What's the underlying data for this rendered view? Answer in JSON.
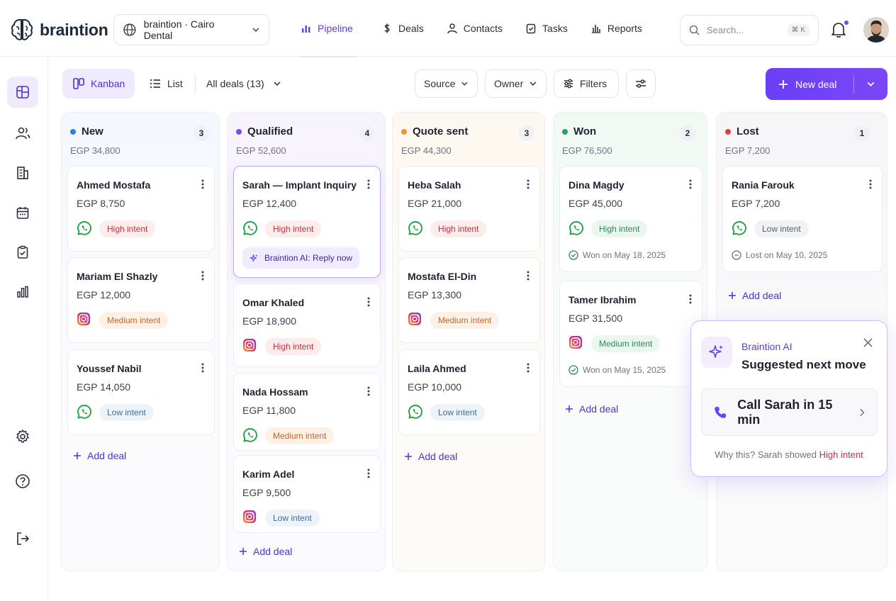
{
  "app": {
    "brand": "braintion",
    "workspace": "braintion · Cairo Dental"
  },
  "nav": [
    {
      "label": "Pipeline",
      "icon": "bar-chart-icon",
      "active": true
    },
    {
      "label": "Deals",
      "icon": "dollar-icon"
    },
    {
      "label": "Contacts",
      "icon": "user-icon"
    },
    {
      "label": "Tasks",
      "icon": "clipboard-check-icon"
    },
    {
      "label": "Reports",
      "icon": "reports-icon"
    }
  ],
  "search": {
    "placeholder": "Search...",
    "shortcut": "⌘ K"
  },
  "toolbar": {
    "kanban": "Kanban",
    "list": "List",
    "all_deals": "All deals (13)",
    "source": "Source",
    "owner": "Owner",
    "filters": "Filters",
    "new_deal": "New deal"
  },
  "columns": [
    {
      "title": "New",
      "count": "3",
      "total": "EGP 34,800",
      "color": "#2f7ee6",
      "cards": [
        {
          "name": "Ahmed Mostafa",
          "amount": "EGP 8,750",
          "channel": "whatsapp",
          "intent": "High intent"
        },
        {
          "name": "Mariam El Shazly",
          "amount": "EGP 12,000",
          "channel": "instagram",
          "intent": "Medium intent"
        },
        {
          "name": "Youssef Nabil",
          "amount": "EGP 14,050",
          "channel": "whatsapp",
          "intent": "Low intent"
        }
      ],
      "add": "Add deal"
    },
    {
      "title": "Qualified",
      "count": "4",
      "total": "EGP 52,600",
      "color": "#7a4cf6",
      "cards": [
        {
          "name": "Sarah — Implant Inquiry",
          "amount": "EGP 12,400",
          "channel": "whatsapp",
          "intent": "High intent",
          "ai": "Braintion AI: Reply now"
        },
        {
          "name": "Omar Khaled",
          "amount": "EGP 18,900",
          "channel": "instagram",
          "intent": "High intent"
        },
        {
          "name": "Nada Hossam",
          "amount": "EGP 11,800",
          "channel": "whatsapp",
          "intent": "Medium intent"
        },
        {
          "name": "Karim Adel",
          "amount": "EGP 9,500",
          "channel": "instagram",
          "intent": "Low intent"
        }
      ],
      "add": "Add deal"
    },
    {
      "title": "Quote sent",
      "count": "3",
      "total": "EGP 44,300",
      "color": "#f0962e",
      "cards": [
        {
          "name": "Heba Salah",
          "amount": "EGP 21,000",
          "channel": "whatsapp",
          "intent": "High intent"
        },
        {
          "name": "Mostafa El-Din",
          "amount": "EGP 13,300",
          "channel": "instagram",
          "intent": "Medium intent"
        },
        {
          "name": "Laila Ahmed",
          "amount": "EGP 10,000",
          "channel": "whatsapp",
          "intent": "Low intent"
        }
      ],
      "add": "Add deal"
    },
    {
      "title": "Won",
      "count": "2",
      "total": "EGP 76,500",
      "color": "#27a55a",
      "cards": [
        {
          "name": "Dina Magdy",
          "amount": "EGP 45,000",
          "channel": "whatsapp",
          "intent": "High intent",
          "status": "Won on May 18, 2025"
        },
        {
          "name": "Tamer Ibrahim",
          "amount": "EGP 31,500",
          "channel": "instagram",
          "intent": "Medium intent",
          "status": "Won on May 15, 2025"
        }
      ],
      "add": "Add deal"
    },
    {
      "title": "Lost",
      "count": "1",
      "total": "EGP 7,200",
      "color": "#e03e3e",
      "cards": [
        {
          "name": "Rania Farouk",
          "amount": "EGP 7,200",
          "channel": "whatsapp",
          "intent": "Low intent",
          "status": "Lost on May 10, 2025"
        }
      ],
      "add": "Add deal"
    }
  ],
  "ai_popup": {
    "brand": "Braintion AI",
    "headline": "Suggested next move",
    "action": "Call Sarah in 15 min",
    "why_prefix": "Why this? Sarah showed",
    "why_highlight": "High intent"
  }
}
